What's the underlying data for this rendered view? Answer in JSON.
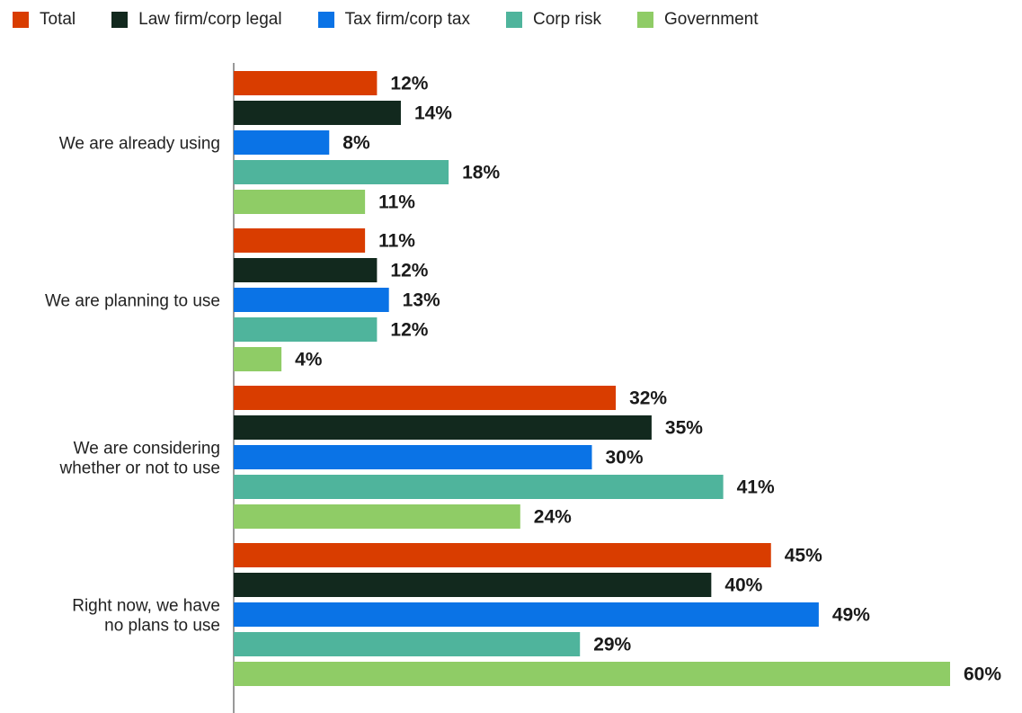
{
  "chart_data": {
    "type": "bar",
    "orientation": "horizontal",
    "categories": [
      [
        "We are already using"
      ],
      [
        "We are planning to use"
      ],
      [
        "We are considering",
        "whether or not to use"
      ],
      [
        "Right now, we have",
        "no plans to use"
      ]
    ],
    "series": [
      {
        "name": "Total",
        "color": "#d93d00",
        "values": [
          12,
          11,
          32,
          45
        ]
      },
      {
        "name": "Law firm/corp legal",
        "color": "#12291e",
        "values": [
          14,
          12,
          35,
          40
        ]
      },
      {
        "name": "Tax firm/corp tax",
        "color": "#0a73e6",
        "values": [
          8,
          13,
          30,
          49
        ]
      },
      {
        "name": "Corp risk",
        "color": "#4fb49c",
        "values": [
          18,
          12,
          41,
          29
        ]
      },
      {
        "name": "Government",
        "color": "#8fcc66",
        "values": [
          11,
          4,
          24,
          60
        ]
      }
    ],
    "value_suffix": "%",
    "xlim": [
      0,
      60
    ],
    "legend_position": "top-left",
    "grid": false
  }
}
